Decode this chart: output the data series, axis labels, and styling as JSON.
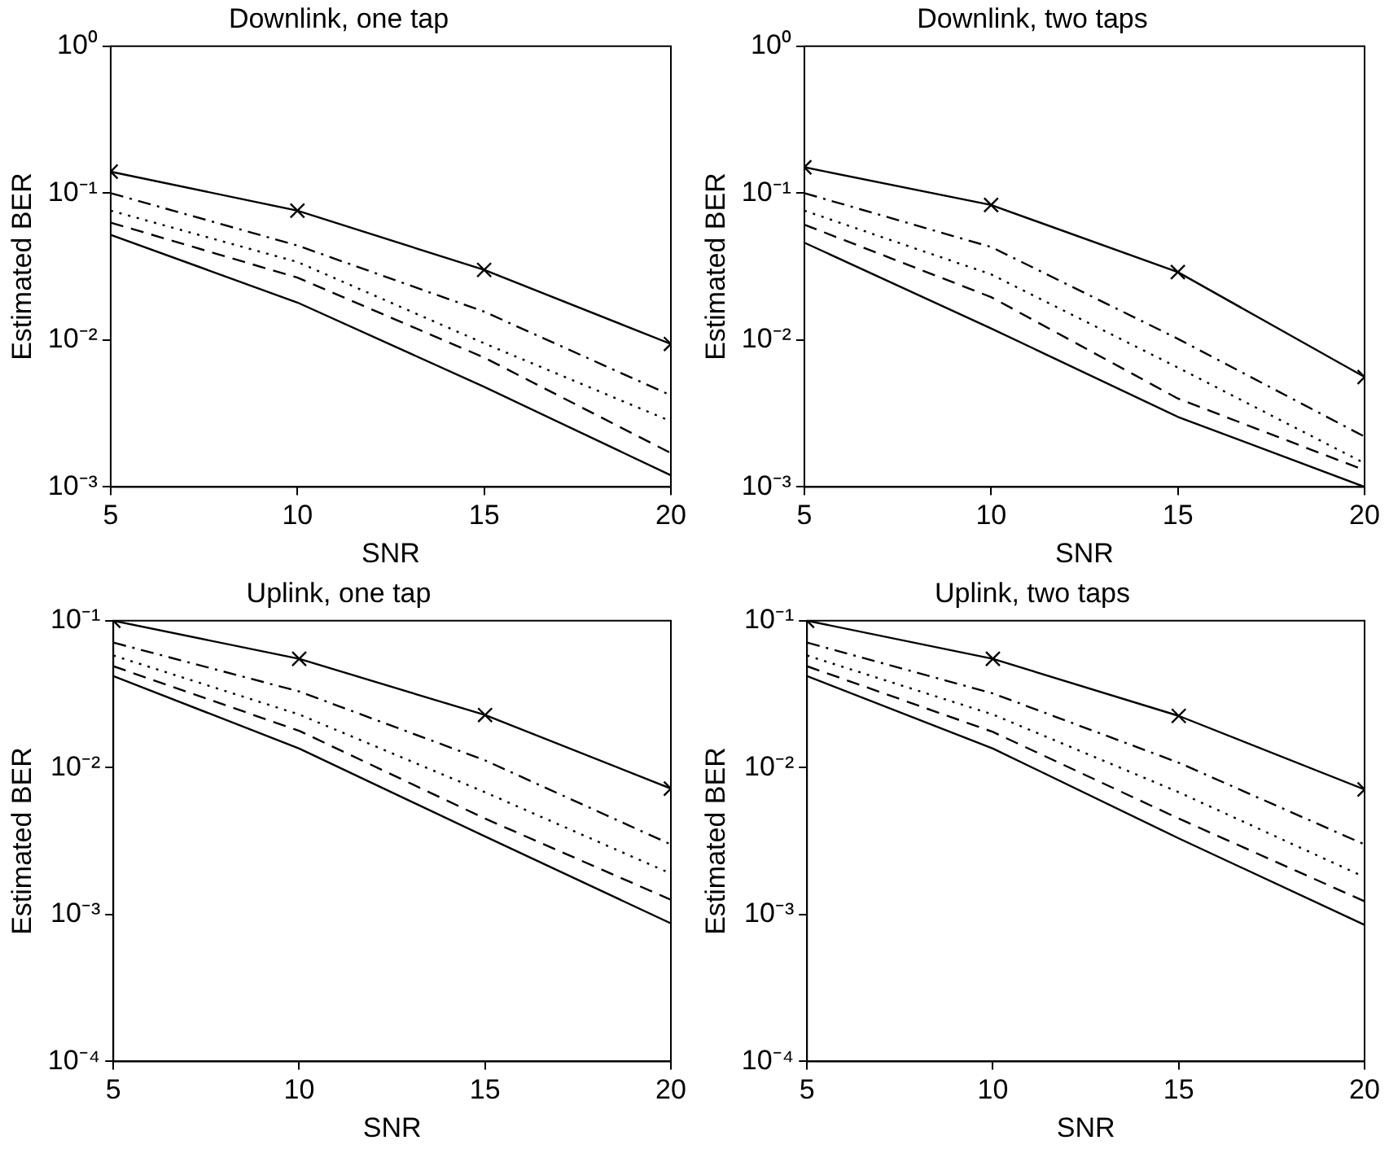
{
  "chart_data": [
    {
      "type": "line",
      "title": "Downlink, one tap",
      "xlabel": "SNR",
      "ylabel": "Estimated BER",
      "log": "y",
      "grid": false,
      "legend": false,
      "x": [
        5,
        10,
        15,
        20
      ],
      "xlim": [
        5,
        20
      ],
      "xticks": [
        5,
        10,
        15,
        20
      ],
      "ylim": [
        0.001,
        1
      ],
      "yticks": [
        {
          "value": 0.001,
          "label": "10⁻³"
        },
        {
          "value": 0.01,
          "label": "10⁻²"
        },
        {
          "value": 0.1,
          "label": "10⁻¹"
        },
        {
          "value": 1,
          "label": "10⁰"
        }
      ],
      "series": [
        {
          "color": "#000000",
          "marker": "cross",
          "line_style": "solid",
          "values": [
            0.14,
            0.076,
            0.03,
            0.0094
          ]
        },
        {
          "color": "#000000",
          "marker": "none",
          "line_style": "dashdot",
          "values": [
            0.1,
            0.044,
            0.0156,
            0.0042
          ]
        },
        {
          "color": "#000000",
          "marker": "none",
          "line_style": "dotted",
          "values": [
            0.076,
            0.034,
            0.0095,
            0.0028
          ]
        },
        {
          "color": "#000000",
          "marker": "none",
          "line_style": "dashed",
          "values": [
            0.063,
            0.0266,
            0.0076,
            0.0017
          ]
        },
        {
          "color": "#000000",
          "marker": "none",
          "line_style": "solid",
          "values": [
            0.052,
            0.018,
            0.0048,
            0.0012
          ]
        }
      ]
    },
    {
      "type": "line",
      "title": "Downlink, two taps",
      "xlabel": "SNR",
      "ylabel": "Estimated BER",
      "log": "y",
      "grid": false,
      "legend": false,
      "x": [
        5,
        10,
        15,
        20
      ],
      "xlim": [
        5,
        20
      ],
      "xticks": [
        5,
        10,
        15,
        20
      ],
      "ylim": [
        0.001,
        1
      ],
      "yticks": [
        {
          "value": 0.001,
          "label": "10⁻³"
        },
        {
          "value": 0.01,
          "label": "10⁻²"
        },
        {
          "value": 0.1,
          "label": "10⁻¹"
        },
        {
          "value": 1,
          "label": "10⁰"
        }
      ],
      "series": [
        {
          "color": "#000000",
          "marker": "cross",
          "line_style": "solid",
          "values": [
            0.15,
            0.083,
            0.029,
            0.0056
          ]
        },
        {
          "color": "#000000",
          "marker": "none",
          "line_style": "dashdot",
          "values": [
            0.1,
            0.043,
            0.0102,
            0.0022
          ]
        },
        {
          "color": "#000000",
          "marker": "none",
          "line_style": "dotted",
          "values": [
            0.076,
            0.028,
            0.0065,
            0.00145
          ]
        },
        {
          "color": "#000000",
          "marker": "none",
          "line_style": "dashed",
          "values": [
            0.061,
            0.0196,
            0.004,
            0.0013
          ]
        },
        {
          "color": "#000000",
          "marker": "none",
          "line_style": "solid",
          "values": [
            0.046,
            0.012,
            0.003,
            0.001
          ]
        }
      ]
    },
    {
      "type": "line",
      "title": "Uplink, one tap",
      "xlabel": "SNR",
      "ylabel": "Estimated BER",
      "log": "y",
      "grid": false,
      "legend": false,
      "x": [
        5,
        10,
        15,
        20
      ],
      "xlim": [
        5,
        20
      ],
      "xticks": [
        5,
        10,
        15,
        20
      ],
      "ylim": [
        0.0001,
        0.1
      ],
      "yticks": [
        {
          "value": 0.0001,
          "label": "10⁻⁴"
        },
        {
          "value": 0.001,
          "label": "10⁻³"
        },
        {
          "value": 0.01,
          "label": "10⁻²"
        },
        {
          "value": 0.1,
          "label": "10⁻¹"
        }
      ],
      "series": [
        {
          "color": "#000000",
          "marker": "cross",
          "line_style": "solid",
          "values": [
            0.1,
            0.055,
            0.0228,
            0.0072
          ]
        },
        {
          "color": "#000000",
          "marker": "none",
          "line_style": "dashdot",
          "values": [
            0.071,
            0.033,
            0.0112,
            0.003
          ]
        },
        {
          "color": "#000000",
          "marker": "none",
          "line_style": "dotted",
          "values": [
            0.058,
            0.023,
            0.0068,
            0.0019
          ]
        },
        {
          "color": "#000000",
          "marker": "none",
          "line_style": "dashed",
          "values": [
            0.049,
            0.0178,
            0.0045,
            0.00126
          ]
        },
        {
          "color": "#000000",
          "marker": "none",
          "line_style": "solid",
          "values": [
            0.042,
            0.0135,
            0.0034,
            0.00087
          ]
        }
      ]
    },
    {
      "type": "line",
      "title": "Uplink, two taps",
      "xlabel": "SNR",
      "ylabel": "Estimated BER",
      "log": "y",
      "grid": false,
      "legend": false,
      "x": [
        5,
        10,
        15,
        20
      ],
      "xlim": [
        5,
        20
      ],
      "xticks": [
        5,
        10,
        15,
        20
      ],
      "ylim": [
        0.0001,
        0.1
      ],
      "yticks": [
        {
          "value": 0.0001,
          "label": "10⁻⁴"
        },
        {
          "value": 0.001,
          "label": "10⁻³"
        },
        {
          "value": 0.01,
          "label": "10⁻²"
        },
        {
          "value": 0.1,
          "label": "10⁻¹"
        }
      ],
      "series": [
        {
          "color": "#000000",
          "marker": "cross",
          "line_style": "solid",
          "values": [
            0.1,
            0.055,
            0.0225,
            0.0071
          ]
        },
        {
          "color": "#000000",
          "marker": "none",
          "line_style": "dashdot",
          "values": [
            0.071,
            0.032,
            0.0108,
            0.003
          ]
        },
        {
          "color": "#000000",
          "marker": "none",
          "line_style": "dotted",
          "values": [
            0.058,
            0.023,
            0.0068,
            0.0018
          ]
        },
        {
          "color": "#000000",
          "marker": "none",
          "line_style": "dashed",
          "values": [
            0.049,
            0.0175,
            0.0045,
            0.00123
          ]
        },
        {
          "color": "#000000",
          "marker": "none",
          "line_style": "solid",
          "values": [
            0.042,
            0.0135,
            0.0033,
            0.00085
          ]
        }
      ]
    }
  ]
}
